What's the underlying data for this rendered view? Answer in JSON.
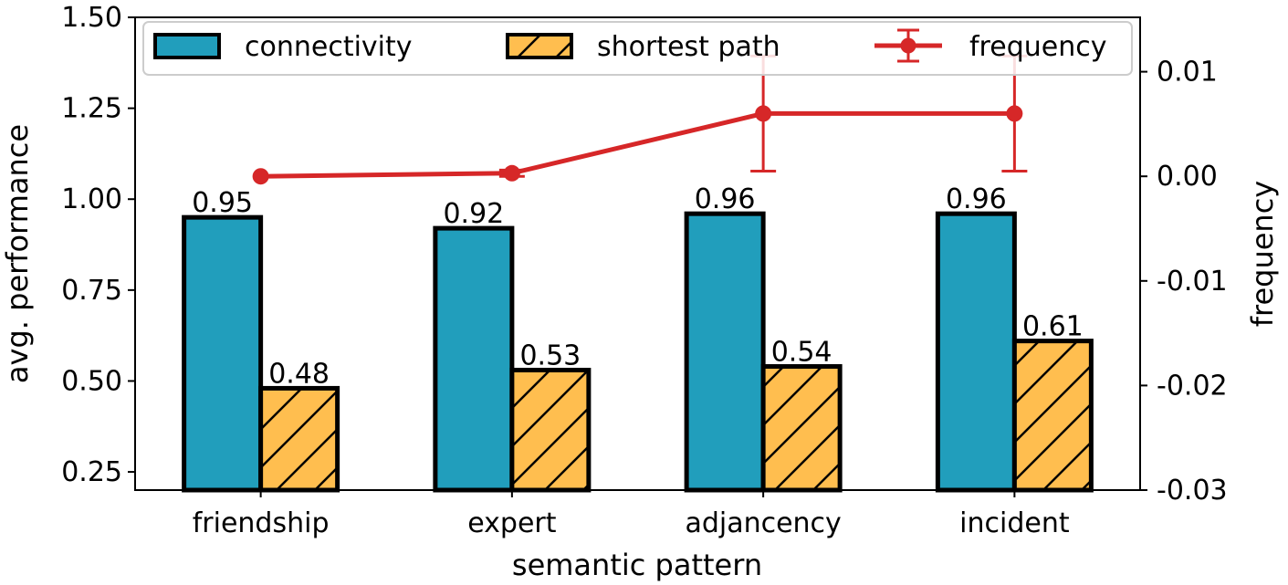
{
  "chart_data": {
    "type": "bar",
    "xlabel": "semantic pattern",
    "ylabel": "avg. performance",
    "y2label": "frequency",
    "categories": [
      "friendship",
      "expert",
      "adjancency",
      "incident"
    ],
    "ylim": [
      0.2,
      1.5
    ],
    "yticks": [
      "0.25",
      "0.50",
      "0.75",
      "1.00",
      "1.25",
      "1.50"
    ],
    "y2lim": [
      -0.03,
      0.0152
    ],
    "y2ticks": [
      "-0.03",
      "-0.02",
      "-0.01",
      "0.00",
      "0.01"
    ],
    "series": [
      {
        "name": "connectivity",
        "kind": "bar",
        "color": "#219ebc",
        "hatch": "none",
        "values": [
          0.95,
          0.92,
          0.96,
          0.96
        ],
        "labels": [
          "0.95",
          "0.92",
          "0.96",
          "0.96"
        ]
      },
      {
        "name": "shortest path",
        "kind": "bar",
        "color": "#ffbe4f",
        "hatch": "diagonal",
        "values": [
          0.48,
          0.53,
          0.54,
          0.61
        ],
        "labels": [
          "0.48",
          "0.53",
          "0.54",
          "0.61"
        ]
      },
      {
        "name": "frequency",
        "kind": "line-errorbar",
        "axis": "right",
        "color": "#d62728",
        "values": [
          0.0,
          0.0003,
          0.006,
          0.006
        ],
        "errors": [
          0.0,
          0.0003,
          0.0055,
          0.0055
        ]
      }
    ],
    "legend_position": "top",
    "grid": false
  }
}
